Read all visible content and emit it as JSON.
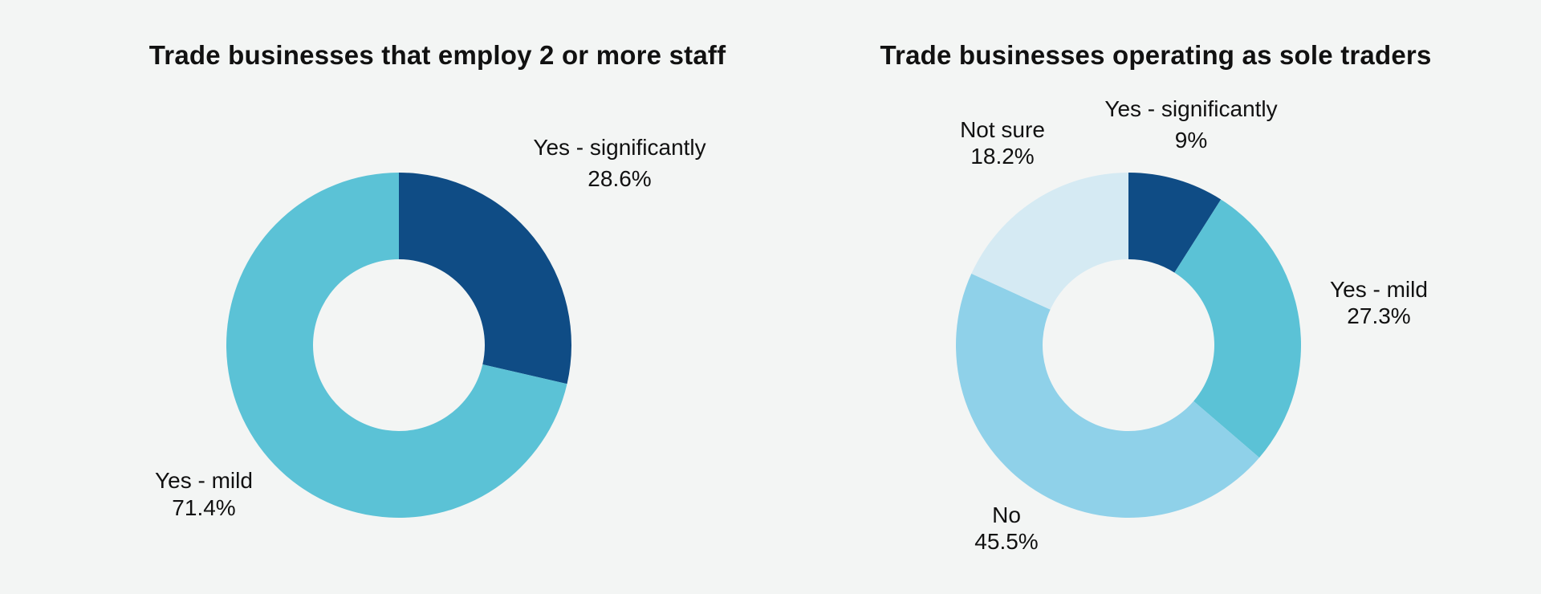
{
  "chart_data": [
    {
      "type": "pie",
      "title": "Trade businesses that employ 2 or more staff",
      "slices": [
        {
          "label": "Yes - significantly",
          "value": 28.6,
          "value_text": "28.6%",
          "color": "#0f4c85"
        },
        {
          "label": "Yes - mild",
          "value": 71.4,
          "value_text": "71.4%",
          "color": "#5bc2d6"
        }
      ]
    },
    {
      "type": "pie",
      "title": "Trade businesses operating as sole traders",
      "slices": [
        {
          "label": "Yes - significantly",
          "value": 9.0,
          "value_text": "9%",
          "color": "#0f4c85"
        },
        {
          "label": "Yes - mild",
          "value": 27.3,
          "value_text": "27.3%",
          "color": "#5bc2d6"
        },
        {
          "label": "No",
          "value": 45.5,
          "value_text": "45.5%",
          "color": "#8fd1e9"
        },
        {
          "label": "Not sure",
          "value": 18.2,
          "value_text": "18.2%",
          "color": "#d5eaf3"
        }
      ]
    }
  ]
}
